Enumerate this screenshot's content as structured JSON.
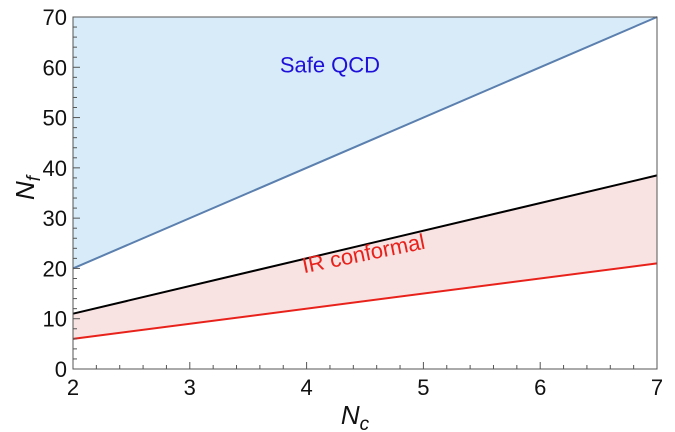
{
  "chart_data": {
    "type": "area",
    "xlabel": {
      "main": "N",
      "sub": "c"
    },
    "ylabel": {
      "main": "N",
      "sub": "f"
    },
    "xlim": [
      2,
      7
    ],
    "ylim": [
      0,
      70
    ],
    "x_ticks": [
      "2",
      "3",
      "4",
      "5",
      "6",
      "7"
    ],
    "y_ticks": [
      "0",
      "10",
      "20",
      "30",
      "40",
      "50",
      "60",
      "70"
    ],
    "series": [
      {
        "x": [
          2,
          7
        ],
        "y": [
          20,
          70
        ],
        "color": "#5b7fae"
      },
      {
        "x": [
          2,
          7
        ],
        "y": [
          11,
          38.5
        ],
        "color": "#000000"
      },
      {
        "x": [
          2,
          7
        ],
        "y": [
          6,
          21
        ],
        "color": "#e8221b"
      }
    ],
    "regions": [
      {
        "label": "Safe QCD",
        "color": "#1f10d8",
        "fill": "#d7ecf8",
        "fill_between": "boundary_to_top",
        "label_at": [
          4.2,
          59
        ]
      },
      {
        "label": "IR conformal",
        "color": "#e8221b",
        "fill": "#f8e2e2",
        "fill_between": "lower_to_middle",
        "label_at": [
          4.5,
          21.5
        ]
      }
    ],
    "grid": false,
    "legend": "none"
  }
}
